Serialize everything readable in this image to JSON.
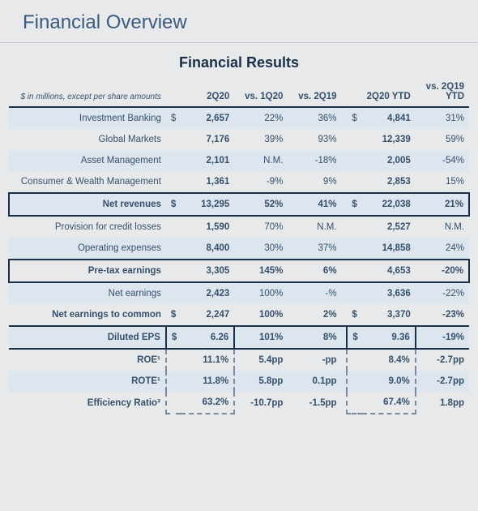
{
  "page_title": "Financial Overview",
  "table_title": "Financial Results",
  "subhead": "$ in millions,\nexcept per share amounts",
  "columns": [
    "2Q20",
    "vs. 1Q20",
    "vs. 2Q19",
    "2Q20 YTD",
    "vs. 2Q19 YTD"
  ],
  "rows": [
    {
      "label": "Investment Banking",
      "d1": "$",
      "v1": "2,657",
      "p1": "22%",
      "p2": "36%",
      "d2": "$",
      "v2": "4,841",
      "p3": "31%",
      "striped": true
    },
    {
      "label": "Global Markets",
      "v1": "7,176",
      "p1": "39%",
      "p2": "93%",
      "v2": "12,339",
      "p3": "59%"
    },
    {
      "label": "Asset Management",
      "v1": "2,101",
      "p1": "N.M.",
      "p2": "-18%",
      "v2": "2,005",
      "p3": "-54%",
      "striped": true
    },
    {
      "label": "Consumer & Wealth Management",
      "v1": "1,361",
      "p1": "-9%",
      "p2": "9%",
      "v2": "2,853",
      "p3": "15%"
    },
    {
      "label": "Net revenues",
      "d1": "$",
      "v1": "13,295",
      "p1": "52%",
      "p2": "41%",
      "d2": "$",
      "v2": "22,038",
      "p3": "21%",
      "bold": true,
      "box": true,
      "striped": true
    },
    {
      "label": "Provision for credit losses",
      "v1": "1,590",
      "p1": "70%",
      "p2": "N.M.",
      "v2": "2,527",
      "p3": "N.M."
    },
    {
      "label": "Operating expenses",
      "v1": "8,400",
      "p1": "30%",
      "p2": "37%",
      "v2": "14,858",
      "p3": "24%",
      "striped": true
    },
    {
      "label": "Pre-tax earnings",
      "v1": "3,305",
      "p1": "145%",
      "p2": "6%",
      "v2": "4,653",
      "p3": "-20%",
      "bold": true,
      "box": true
    },
    {
      "label": "Net earnings",
      "v1": "2,423",
      "p1": "100%",
      "p2": "-%",
      "v2": "3,636",
      "p3": "-22%",
      "striped": true
    },
    {
      "label": "Net earnings to common",
      "d1": "$",
      "v1": "2,247",
      "p1": "100%",
      "p2": "2%",
      "d2": "$",
      "v2": "3,370",
      "p3": "-23%",
      "bold": true
    },
    {
      "label": "Diluted EPS",
      "d1": "$",
      "v1": "6.26",
      "p1": "101%",
      "p2": "8%",
      "d2": "$",
      "v2": "9.36",
      "p3": "-19%",
      "bold": true,
      "eps": true,
      "striped": true
    },
    {
      "label": "ROE¹",
      "v1": "11.1%",
      "p1": "5.4pp",
      "p2": "-pp",
      "v2": "8.4%",
      "p3": "-2.7pp",
      "bold": true,
      "dashed": "top"
    },
    {
      "label": "ROTE¹",
      "v1": "11.8%",
      "p1": "5.8pp",
      "p2": "0.1pp",
      "v2": "9.0%",
      "p3": "-2.7pp",
      "bold": true,
      "striped": true,
      "dashed": "mid"
    },
    {
      "label": "Efficiency Ratio³",
      "v1": "63.2%",
      "p1": "-10.7pp",
      "p2": "-1.5pp",
      "v2": "67.4%",
      "p3": "1.8pp",
      "bold": true,
      "dashed": "bottom"
    }
  ],
  "style": {
    "background": "#e8e9ea",
    "title_color": "#3a5a80",
    "text_color": "#35506e",
    "stripe_color": "#dde5ee",
    "border_color": "#1a2f4a",
    "dash_color": "#7a8aa0"
  }
}
